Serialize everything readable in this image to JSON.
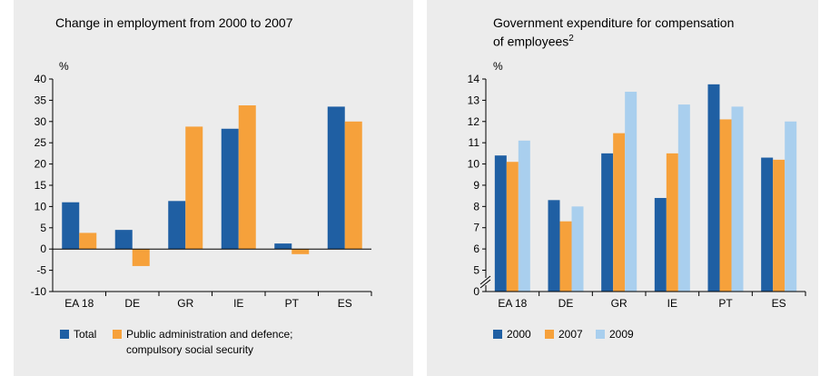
{
  "colors": {
    "s2000_total": "#1f5fa3",
    "s2007_public": "#f6a13b",
    "s2009": "#a9cfee",
    "panel_bg": "#ececec",
    "axis": "#000000"
  },
  "chart_data": [
    {
      "type": "bar",
      "title": "Change in employment from 2000 to 2007",
      "ylabel": "%",
      "ylim": [
        -10,
        40
      ],
      "yticks": [
        "40",
        "35",
        "30",
        "25",
        "20",
        "15",
        "10",
        "5",
        "0",
        "-5",
        "-10"
      ],
      "categories": [
        "EA 18",
        "DE",
        "GR",
        "IE",
        "PT",
        "ES"
      ],
      "series": [
        {
          "name": "Total",
          "color": "#1f5fa3",
          "values": [
            11.0,
            4.5,
            11.3,
            28.3,
            1.3,
            33.5
          ]
        },
        {
          "name_line1": "Public administration and defence;",
          "name_line2": "compulsory social security",
          "color": "#f6a13b",
          "values": [
            3.8,
            -4.0,
            28.8,
            33.8,
            -1.2,
            30.0
          ]
        }
      ],
      "legend": "bottom"
    },
    {
      "type": "bar",
      "title_line1": "Government expenditure for compensation",
      "title_line2": "of employees",
      "title_superscript": "2",
      "ylabel": "%",
      "ylim": [
        4,
        14
      ],
      "axis_break": true,
      "yticks": [
        "14",
        "13",
        "12",
        "11",
        "10",
        "9",
        "8",
        "7",
        "6",
        "5",
        "0"
      ],
      "categories": [
        "EA 18",
        "DE",
        "GR",
        "IE",
        "PT",
        "ES"
      ],
      "series": [
        {
          "name": "2000",
          "color": "#1f5fa3",
          "values": [
            10.4,
            8.3,
            10.5,
            8.4,
            13.75,
            10.3
          ]
        },
        {
          "name": "2007",
          "color": "#f6a13b",
          "values": [
            10.1,
            7.3,
            11.45,
            10.5,
            12.1,
            10.2
          ]
        },
        {
          "name": "2009",
          "color": "#a9cfee",
          "values": [
            11.1,
            8.0,
            13.4,
            12.8,
            12.7,
            12.0
          ]
        }
      ],
      "legend": "bottom"
    }
  ]
}
